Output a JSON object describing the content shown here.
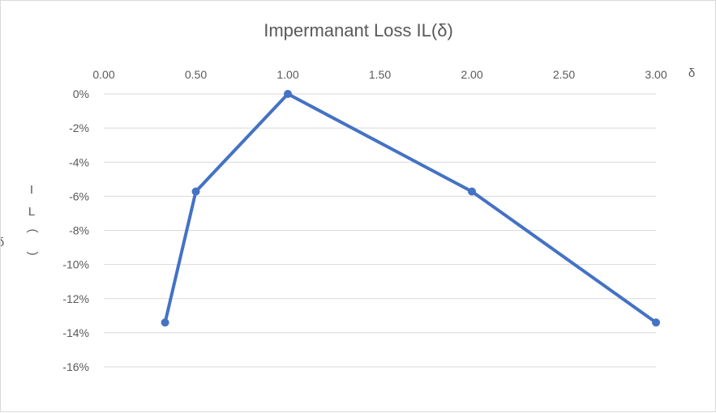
{
  "chart_data": {
    "type": "line",
    "title": "Impermanant  Loss IL(δ)",
    "xlabel": "δ",
    "ylabel": [
      "I",
      "L",
      "(",
      "δ",
      ")"
    ],
    "xlim": [
      0,
      3
    ],
    "ylim": [
      -0.16,
      0
    ],
    "x_ticks": [
      "0.00",
      "0.50",
      "1.00",
      "1.50",
      "2.00",
      "2.50",
      "3.00"
    ],
    "y_ticks": [
      "0%",
      "-2%",
      "-4%",
      "-6%",
      "-8%",
      "-10%",
      "-12%",
      "-14%",
      "-16%"
    ],
    "x_axis_position": "top",
    "grid": true,
    "legend": "none",
    "series": [
      {
        "color": "#4472C4",
        "points": [
          {
            "x": 0.333,
            "y": -0.134
          },
          {
            "x": 0.5,
            "y": -0.0572
          },
          {
            "x": 1.0,
            "y": 0.0
          },
          {
            "x": 2.0,
            "y": -0.0572
          },
          {
            "x": 3.0,
            "y": -0.134
          }
        ]
      }
    ]
  }
}
